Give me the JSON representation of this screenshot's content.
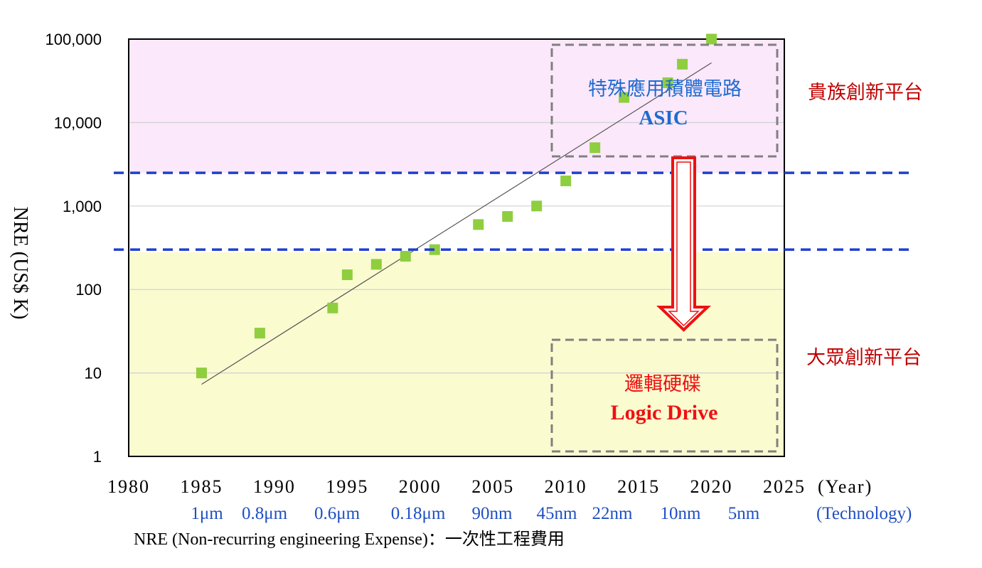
{
  "chart_data": {
    "type": "scatter",
    "ylabel": "NRE (US$ K)",
    "y_scale": "log",
    "ylim": [
      1,
      100000
    ],
    "xlim": [
      1980,
      2025
    ],
    "x_ticks": [
      "1980",
      "1985",
      "1990",
      "1995",
      "2000",
      "2005",
      "2010",
      "2015",
      "2020",
      "2025"
    ],
    "y_ticks": [
      "1",
      "10",
      "100",
      "1,000",
      "10,000",
      "100,000"
    ],
    "y_tick_values": [
      1,
      10,
      100,
      1000,
      10000,
      100000
    ],
    "x_axis_unit": "(Year)",
    "points": [
      {
        "x": 1985,
        "y": 10
      },
      {
        "x": 1989,
        "y": 30
      },
      {
        "x": 1994,
        "y": 60
      },
      {
        "x": 1995,
        "y": 150
      },
      {
        "x": 1997,
        "y": 200
      },
      {
        "x": 1999,
        "y": 250
      },
      {
        "x": 2001,
        "y": 300
      },
      {
        "x": 2004,
        "y": 600
      },
      {
        "x": 2006,
        "y": 750
      },
      {
        "x": 2008,
        "y": 1000
      },
      {
        "x": 2010,
        "y": 2000
      },
      {
        "x": 2012,
        "y": 5000
      },
      {
        "x": 2014,
        "y": 20000
      },
      {
        "x": 2017,
        "y": 30000
      },
      {
        "x": 2018,
        "y": 50000
      },
      {
        "x": 2020,
        "y": 100000
      }
    ],
    "trendline": {
      "start": {
        "x": 1985,
        "y": 7.3
      },
      "end": {
        "x": 2020,
        "y": 52000
      }
    },
    "thresholds": [
      2500,
      300
    ],
    "regions": [
      {
        "name": "upper",
        "from": 2500,
        "to": 100000,
        "color": "#fbe8fb"
      },
      {
        "name": "lower",
        "from": 1,
        "to": 280,
        "color": "#fbfbd0"
      }
    ],
    "technology": {
      "labels": [
        "1μm",
        "0.8μm",
        "0.6μm",
        "0.18μm",
        "90nm",
        "45nm",
        "22nm",
        "10nm",
        "5nm"
      ],
      "unit": "(Technology)"
    },
    "annotations": {
      "asic_zh": "特殊應用積體電路",
      "asic_en": "ASIC",
      "logic_zh": "邏輯硬碟",
      "logic_en": "Logic Drive",
      "right_upper": "貴族創新平台",
      "right_lower": "大眾創新平台"
    },
    "footnote": "NRE (Non-recurring engineering Expense)：一次性工程費用",
    "colors": {
      "marker": "#8fce3f",
      "threshold": "#1f3fcf",
      "arrow": "#ee1111",
      "box": "#808080",
      "asic_text": "#1f6bd0",
      "logic_text": "#ee1111",
      "side_text": "#c00000"
    }
  }
}
